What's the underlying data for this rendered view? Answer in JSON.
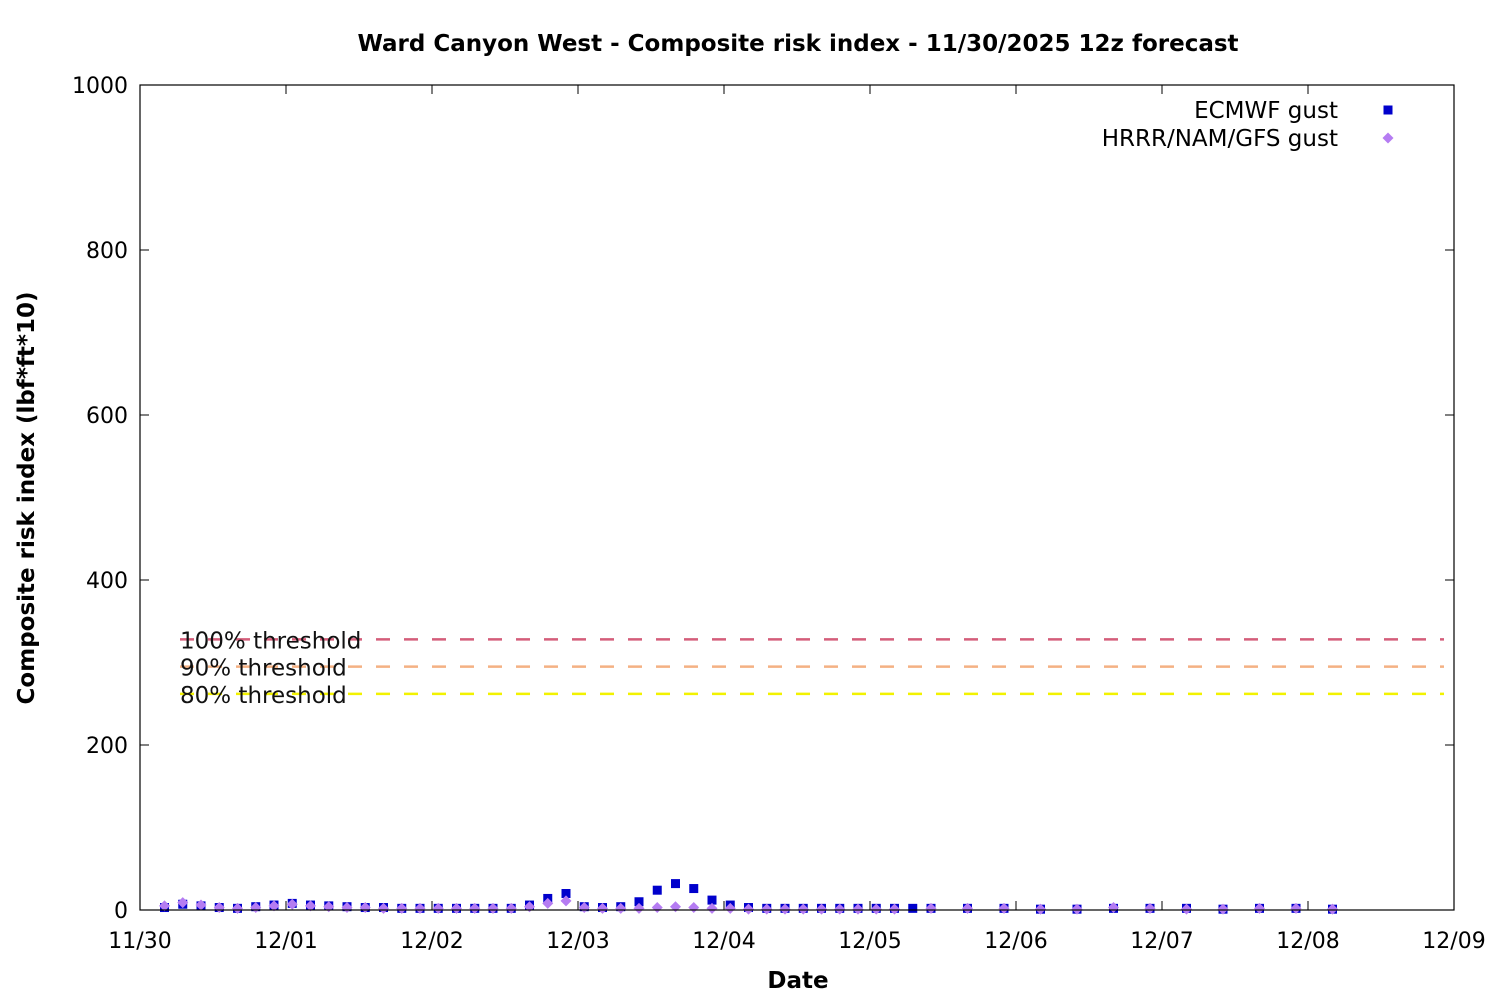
{
  "chart_data": {
    "type": "scatter",
    "title": "Ward Canyon West - Composite risk index - 11/30/2025 12z forecast",
    "xlabel": "Date",
    "ylabel": "Composite risk index (lbf*ft*10)",
    "x_unit": "days",
    "x_start": "11/30/2025 00z",
    "x_ticks": [
      "11/30",
      "12/01",
      "12/02",
      "12/03",
      "12/04",
      "12/05",
      "12/06",
      "12/07",
      "12/08",
      "12/09"
    ],
    "ylim": [
      0,
      1000
    ],
    "y_ticks": [
      0,
      200,
      400,
      600,
      800,
      1000
    ],
    "grid": false,
    "legend_position": "top-right",
    "thresholds": [
      {
        "label": "100% threshold",
        "value": 328,
        "color": "#d45d7a"
      },
      {
        "label": "90% threshold",
        "value": 295,
        "color": "#f4b183"
      },
      {
        "label": "80% threshold",
        "value": 262,
        "color": "#f2f200"
      }
    ],
    "series": [
      {
        "name": "ECMWF gust",
        "marker": "square",
        "color": "#0000cc",
        "x": [
          0.0,
          0.125,
          0.25,
          0.375,
          0.5,
          0.625,
          0.75,
          0.875,
          1.0,
          1.125,
          1.25,
          1.375,
          1.5,
          1.625,
          1.75,
          1.875,
          2.0,
          2.125,
          2.25,
          2.375,
          2.5,
          2.625,
          2.75,
          2.875,
          3.0,
          3.125,
          3.25,
          3.375,
          3.5,
          3.625,
          3.75,
          3.875,
          4.0,
          4.125,
          4.25,
          4.375,
          4.5,
          4.625,
          4.75,
          4.875,
          5.0,
          5.125,
          5.25,
          5.5,
          5.75,
          6.0,
          6.25,
          6.5,
          6.75,
          7.0,
          7.25,
          7.5,
          7.75,
          8.0
        ],
        "y": [
          3,
          7,
          5,
          3,
          2,
          4,
          6,
          8,
          6,
          5,
          4,
          3,
          3,
          2,
          2,
          2,
          2,
          2,
          2,
          2,
          6,
          14,
          20,
          4,
          3,
          4,
          10,
          24,
          32,
          26,
          12,
          6,
          3,
          2,
          2,
          2,
          2,
          2,
          2,
          2,
          2,
          2,
          2,
          2,
          2,
          1,
          1,
          2,
          2,
          2,
          1,
          2,
          2,
          1
        ]
      },
      {
        "name": "HRRR/NAM/GFS gust",
        "marker": "diamond",
        "color": "#b57cf2",
        "x": [
          0.0,
          0.125,
          0.25,
          0.375,
          0.5,
          0.625,
          0.75,
          0.875,
          1.0,
          1.125,
          1.25,
          1.375,
          1.5,
          1.625,
          1.75,
          1.875,
          2.0,
          2.125,
          2.25,
          2.375,
          2.5,
          2.625,
          2.75,
          2.875,
          3.0,
          3.125,
          3.25,
          3.375,
          3.5,
          3.625,
          3.75,
          3.875,
          4.0,
          4.125,
          4.25,
          4.375,
          4.5,
          4.625,
          4.75,
          4.875,
          5.0,
          5.25,
          5.5,
          5.75,
          6.0,
          6.25,
          6.5,
          6.75,
          7.0,
          7.25,
          7.5,
          7.75,
          8.0
        ],
        "y": [
          5,
          9,
          6,
          3,
          2,
          3,
          5,
          7,
          5,
          4,
          3,
          3,
          2,
          2,
          2,
          2,
          2,
          2,
          2,
          2,
          4,
          8,
          11,
          3,
          2,
          2,
          2,
          3,
          4,
          3,
          2,
          2,
          1,
          1,
          1,
          1,
          1,
          1,
          1,
          1,
          1,
          2,
          2,
          2,
          1,
          1,
          3,
          2,
          1,
          1,
          2,
          2,
          1
        ]
      }
    ]
  }
}
